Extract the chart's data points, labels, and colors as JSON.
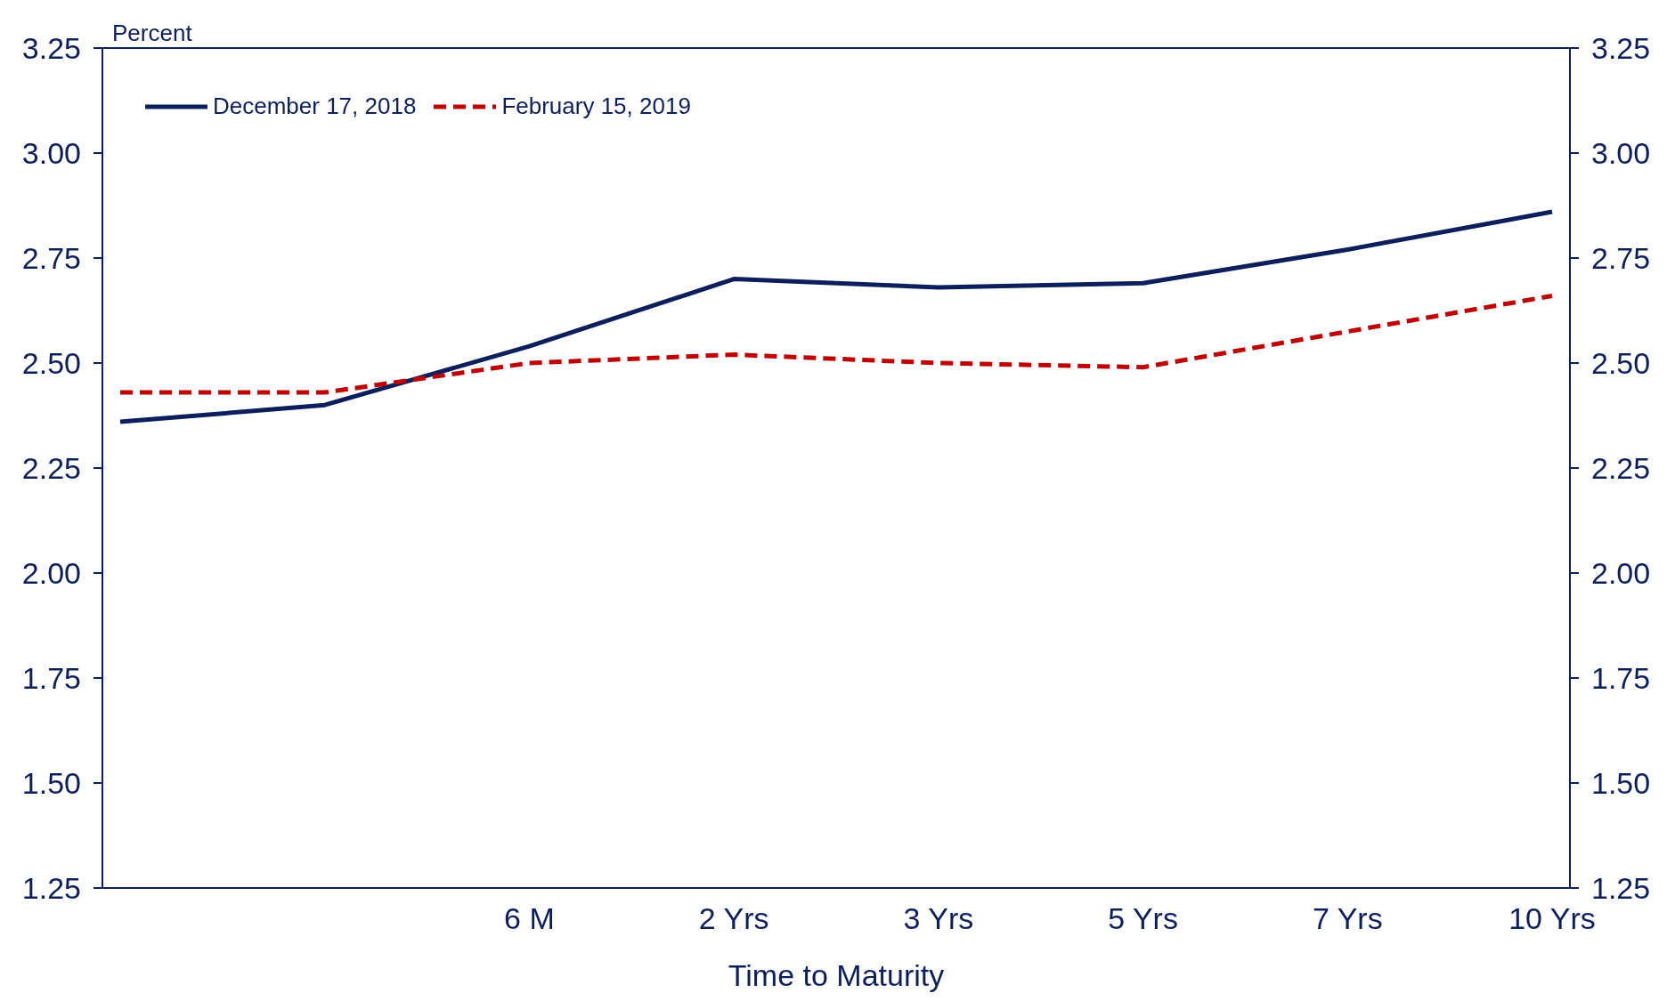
{
  "chart_data": {
    "type": "line",
    "ylabel": "Percent",
    "xlabel": "Time to Maturity",
    "categories": [
      null,
      null,
      "6 M",
      "2 Yrs",
      "3 Yrs",
      "5 Yrs",
      "7 Yrs",
      "10 Yrs"
    ],
    "ylim": [
      1.25,
      3.25
    ],
    "yticks": [
      {
        "value": 1.25,
        "label": "1.25"
      },
      {
        "value": 1.5,
        "label": "1.50"
      },
      {
        "value": 1.75,
        "label": "1.75"
      },
      {
        "value": 2,
        "label": "2.00"
      },
      {
        "value": 2.25,
        "label": "2.25"
      },
      {
        "value": 2.5,
        "label": "2.50"
      },
      {
        "value": 2.75,
        "label": "2.75"
      },
      {
        "value": 3,
        "label": "3.00"
      },
      {
        "value": 3.25,
        "label": "3.25"
      }
    ],
    "y2lim": [
      1.25,
      3.25
    ],
    "y2ticks": [
      {
        "value": 1.25,
        "label": "1.25"
      },
      {
        "value": 1.5,
        "label": "1.50"
      },
      {
        "value": 1.75,
        "label": "1.75"
      },
      {
        "value": 2,
        "label": "2.00"
      },
      {
        "value": 2.25,
        "label": "2.25"
      },
      {
        "value": 2.5,
        "label": "2.50"
      },
      {
        "value": 2.75,
        "label": "2.75"
      },
      {
        "value": 3,
        "label": "3.00"
      },
      {
        "value": 3.25,
        "label": "3.25"
      }
    ],
    "series": [
      {
        "name": "December 17, 2018",
        "color": "#0c1f5c",
        "line_style": "solid",
        "values": [
          2.36,
          2.4,
          2.54,
          2.7,
          2.68,
          2.69,
          2.77,
          2.86
        ]
      },
      {
        "name": "February 15, 2019",
        "color": "#c00000",
        "line_style": "dashed",
        "values": [
          2.43,
          2.43,
          2.5,
          2.52,
          2.5,
          2.49,
          2.575,
          2.66
        ]
      }
    ],
    "legend": "top left",
    "marker": "none"
  }
}
